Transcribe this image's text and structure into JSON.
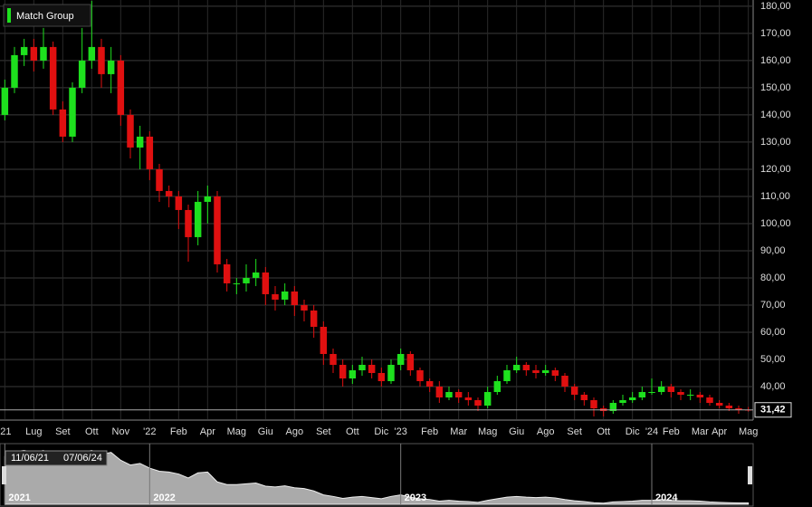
{
  "chart_data": {
    "type": "candlestick",
    "title": "Match Group",
    "categories": [
      "'21",
      null,
      null,
      "Lug",
      null,
      null,
      "Set",
      null,
      null,
      "Ott",
      null,
      null,
      "Nov",
      null,
      null,
      "'22",
      null,
      null,
      "Feb",
      null,
      null,
      "Apr",
      null,
      null,
      "Mag",
      null,
      null,
      "Giu",
      null,
      null,
      "Ago",
      null,
      null,
      "Set",
      null,
      null,
      "Ott",
      null,
      null,
      "Dic",
      null,
      "'23",
      null,
      null,
      "Feb",
      null,
      null,
      "Mar",
      null,
      null,
      "Mag",
      null,
      null,
      "Giu",
      null,
      null,
      "Ago",
      null,
      null,
      "Set",
      null,
      null,
      "Ott",
      null,
      null,
      "Dic",
      null,
      "'24",
      null,
      "Feb",
      null,
      null,
      "Mar",
      null,
      "Apr",
      null,
      null,
      "Mag"
    ],
    "open": [
      140,
      150,
      162,
      165,
      160,
      165,
      142,
      132,
      150,
      160,
      165,
      155,
      160,
      140,
      128,
      132,
      120,
      112,
      110,
      105,
      95,
      108,
      110,
      85,
      78,
      78,
      80,
      82,
      74,
      72,
      75,
      70,
      68,
      62,
      52,
      48,
      43,
      46,
      48,
      45,
      42,
      48,
      52,
      46,
      42,
      40,
      36,
      38,
      36,
      35,
      33,
      38,
      42,
      46,
      48,
      46,
      45,
      46,
      44,
      40,
      37,
      35,
      32,
      31,
      34,
      35,
      36,
      38,
      38,
      40,
      38,
      37,
      37,
      36,
      34,
      33,
      32,
      31.5
    ],
    "high": [
      153,
      165,
      168,
      168,
      172,
      167,
      145,
      152,
      172,
      182,
      168,
      165,
      162,
      142,
      136,
      134,
      122,
      114,
      112,
      107,
      112,
      114,
      112,
      87,
      80,
      85,
      87,
      84,
      77,
      78,
      77,
      72,
      70,
      64,
      54,
      50,
      48,
      51,
      50,
      47,
      50,
      54,
      53,
      47,
      43,
      42,
      40,
      39,
      38,
      36,
      40,
      44,
      48,
      51,
      49,
      48,
      48,
      47,
      45,
      41,
      38,
      36,
      33,
      35,
      37,
      38,
      40,
      43,
      42,
      41,
      39,
      39,
      38,
      37,
      35,
      34,
      33,
      32.5
    ],
    "low": [
      138,
      148,
      158,
      156,
      157,
      140,
      130,
      130,
      148,
      157,
      150,
      148,
      136,
      124,
      120,
      116,
      108,
      106,
      98,
      86,
      92,
      100,
      82,
      75,
      74,
      75,
      77,
      70,
      68,
      70,
      66,
      64,
      58,
      48,
      45,
      40,
      41,
      44,
      43,
      40,
      41,
      46,
      44,
      40,
      38,
      34,
      35,
      34,
      33,
      31,
      32,
      37,
      41,
      45,
      44,
      43,
      44,
      42,
      38,
      35,
      33,
      29,
      29,
      30,
      33,
      34,
      35,
      37,
      37,
      36,
      35,
      35,
      34,
      33,
      32,
      31,
      30,
      30.8
    ],
    "close": [
      150,
      162,
      165,
      160,
      165,
      142,
      132,
      150,
      160,
      165,
      155,
      160,
      140,
      128,
      132,
      120,
      112,
      110,
      105,
      95,
      108,
      110,
      85,
      78,
      78,
      80,
      82,
      74,
      72,
      75,
      70,
      68,
      62,
      52,
      48,
      43,
      46,
      48,
      45,
      42,
      48,
      52,
      46,
      42,
      40,
      36,
      38,
      36,
      35,
      33,
      38,
      42,
      46,
      48,
      46,
      45,
      46,
      44,
      40,
      37,
      35,
      32,
      31,
      34,
      35,
      36,
      38,
      38,
      40,
      38,
      37,
      37,
      36,
      34,
      33,
      32,
      31.5,
      31.42
    ],
    "last_value_label": "31,42",
    "up_color": "#1ee01e",
    "down_color": "#e01010",
    "ylim": [
      28,
      182.3
    ],
    "yticks": [
      {
        "value": 40,
        "label": "40,00"
      },
      {
        "value": 50,
        "label": "50,00"
      },
      {
        "value": 60,
        "label": "60,00"
      },
      {
        "value": 70,
        "label": "70,00"
      },
      {
        "value": 80,
        "label": "80,00"
      },
      {
        "value": 90,
        "label": "90,00"
      },
      {
        "value": 100,
        "label": "100,00"
      },
      {
        "value": 110,
        "label": "110,00"
      },
      {
        "value": 120,
        "label": "120,00"
      },
      {
        "value": 130,
        "label": "130,00"
      },
      {
        "value": 140,
        "label": "140,00"
      },
      {
        "value": 150,
        "label": "150,00"
      },
      {
        "value": 160,
        "label": "160,00"
      },
      {
        "value": 170,
        "label": "170,00"
      },
      {
        "value": 180,
        "label": "180,00"
      }
    ],
    "grid": true,
    "navigator": {
      "years": [
        "2021",
        "2022",
        "2023",
        "2024"
      ],
      "year_index": [
        0,
        15,
        41,
        67
      ],
      "range": [
        "11/06/21",
        "07/06/24"
      ]
    }
  }
}
